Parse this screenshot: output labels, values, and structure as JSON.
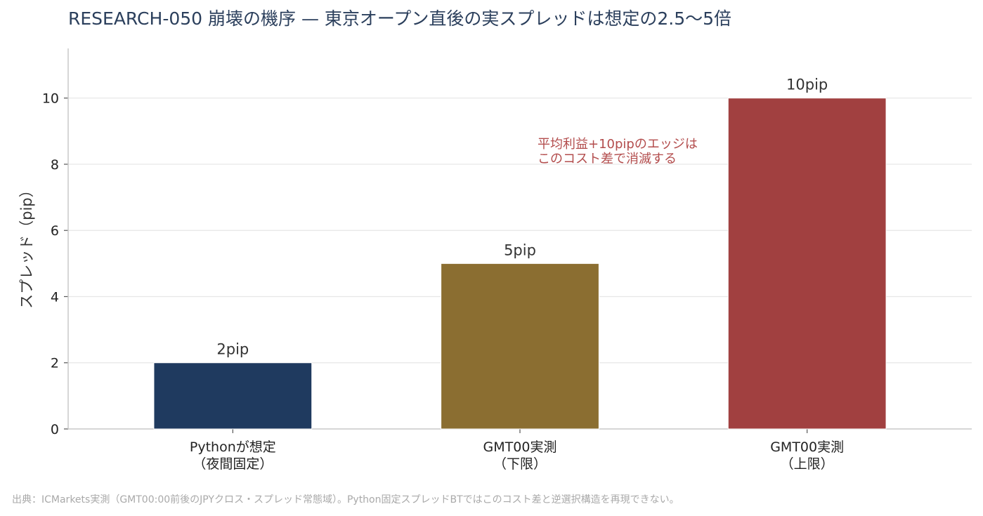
{
  "chart_data": {
    "type": "bar",
    "title": "RESEARCH-050  崩壊の機序 — 東京オープン直後の実スプレッドは想定の2.5〜5倍",
    "xlabel": "",
    "ylabel": "スプレッド（pip）",
    "ylim": [
      0,
      11.5
    ],
    "yticks": [
      0,
      2,
      4,
      6,
      8,
      10
    ],
    "grid": true,
    "categories": [
      [
        "Pythonが想定",
        "（夜間固定）"
      ],
      [
        "GMT00実測",
        "（下限）"
      ],
      [
        "GMT00実測",
        "（上限）"
      ]
    ],
    "values": [
      2,
      5,
      10
    ],
    "value_labels": [
      "2pip",
      "5pip",
      "10pip"
    ],
    "colors": [
      "#1f3a5f",
      "#8b6e31",
      "#a14040"
    ],
    "annotation": {
      "lines": [
        "平均利益+10pipのエッジは",
        "このコスト差で消滅する"
      ],
      "color": "#b34d4d"
    },
    "source": "出典：ICMarkets実測（GMT00:00前後のJPYクロス・スプレッド常態域）。Python固定スプレッドBTではこのコスト差と逆選択構造を再現できない。"
  }
}
